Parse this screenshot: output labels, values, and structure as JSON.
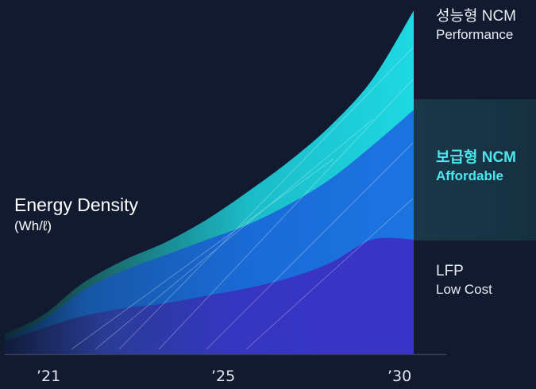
{
  "chart_data": {
    "type": "area",
    "ylabel": "Energy Density",
    "yunit": "(Wh/ℓ)",
    "x_ticks": [
      "’21",
      "’25",
      "’30"
    ],
    "x": [
      2020.1,
      2021,
      2022,
      2023,
      2024,
      2025,
      2026,
      2027,
      2028,
      2029,
      2030
    ],
    "series": [
      {
        "name": "성능형 NCM",
        "subtitle": "Performance",
        "color": "#1fd3dc",
        "values": [
          8,
          15,
          28,
          37,
          44,
          53,
          64,
          76,
          90,
          108,
          135
        ]
      },
      {
        "name": "보급형 NCM",
        "subtitle": "Affordable",
        "color": "#1a6fdc",
        "values": [
          6,
          13,
          25,
          33,
          39,
          45,
          51,
          59,
          69,
          82,
          96
        ]
      },
      {
        "name": "LFP",
        "subtitle": "Low Cost",
        "color": "#3a33c4",
        "values": [
          5,
          10,
          15,
          18,
          20,
          23,
          26,
          30,
          36,
          45,
          45
        ]
      }
    ],
    "ylim": [
      0,
      137
    ],
    "grid": false,
    "legend": "right"
  }
}
